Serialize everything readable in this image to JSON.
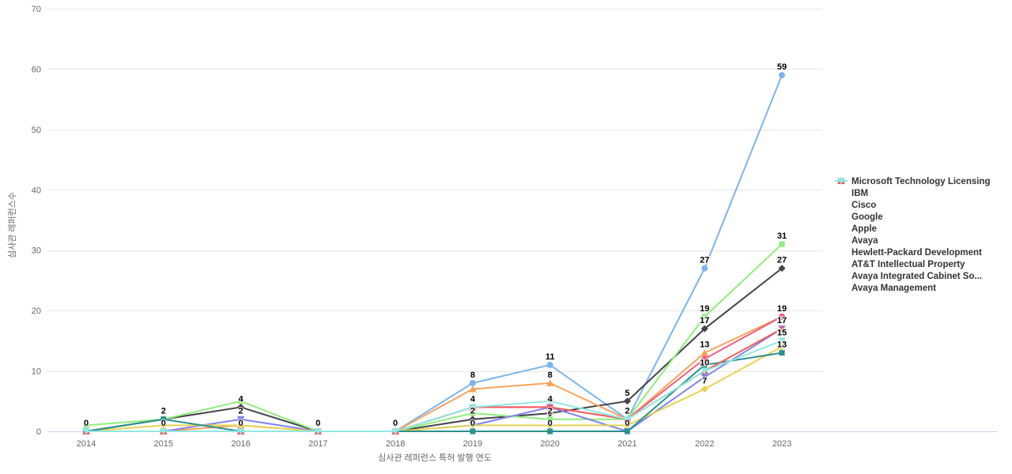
{
  "chart_data": {
    "type": "line",
    "x": [
      2014,
      2015,
      2016,
      2017,
      2018,
      2019,
      2020,
      2021,
      2022,
      2023
    ],
    "xlabel": "심사관 레퍼런스 특허 발행 연도",
    "ylabel": "심사관 레퍼런스수",
    "ylim": [
      0,
      70
    ],
    "yticks": [
      0,
      10,
      20,
      30,
      40,
      50,
      60,
      70
    ],
    "grid": true,
    "legend_position": "right",
    "series": [
      {
        "name": "Microsoft Technology Licensing",
        "color": "#7cb5ec",
        "marker": "circle",
        "values": [
          0,
          0,
          0,
          0,
          0,
          8,
          11,
          2,
          27,
          59
        ]
      },
      {
        "name": "IBM",
        "color": "#434348",
        "marker": "diamond",
        "values": [
          0,
          2,
          4,
          0,
          0,
          2,
          3,
          5,
          17,
          27
        ]
      },
      {
        "name": "Cisco",
        "color": "#90ed7d",
        "marker": "square",
        "values": [
          1,
          2,
          5,
          0,
          0,
          3,
          2,
          2,
          19,
          31
        ]
      },
      {
        "name": "Google",
        "color": "#f7a35c",
        "marker": "triangle",
        "values": [
          0,
          0,
          1,
          0,
          0,
          7,
          8,
          2,
          13,
          19
        ]
      },
      {
        "name": "Apple",
        "color": "#8085e9",
        "marker": "triangle-down",
        "values": [
          0,
          0,
          2,
          0,
          0,
          1,
          4,
          0,
          9,
          17
        ]
      },
      {
        "name": "Avaya",
        "color": "#f15c80",
        "marker": "circle",
        "values": [
          0,
          0,
          0,
          0,
          0,
          4,
          4,
          2,
          12,
          19
        ]
      },
      {
        "name": "Hewlett-Packard Development",
        "color": "#e4d354",
        "marker": "diamond",
        "values": [
          0,
          1,
          1,
          0,
          0,
          1,
          1,
          1,
          7,
          14
        ]
      },
      {
        "name": "AT&T Intellectual Property",
        "color": "#2b908f",
        "marker": "square",
        "values": [
          0,
          2,
          0,
          0,
          0,
          0,
          0,
          0,
          11,
          13
        ]
      },
      {
        "name": "Avaya Integrated Cabinet So...",
        "color": "#f45b5b",
        "marker": "triangle",
        "values": [
          0,
          0,
          0,
          0,
          0,
          4,
          4,
          2,
          10,
          17
        ]
      },
      {
        "name": "Avaya Management",
        "color": "#91e8e1",
        "marker": "triangle-down",
        "values": [
          0,
          0,
          0,
          0,
          0,
          4,
          5,
          2,
          10,
          15
        ]
      }
    ],
    "visible_labels": [
      {
        "year": 2014,
        "value": 0
      },
      {
        "year": 2015,
        "value": 2
      },
      {
        "year": 2015,
        "value": 0
      },
      {
        "year": 2016,
        "value": 4
      },
      {
        "year": 2016,
        "value": 2
      },
      {
        "year": 2016,
        "value": 0
      },
      {
        "year": 2017,
        "value": 0
      },
      {
        "year": 2018,
        "value": 0
      },
      {
        "year": 2019,
        "value": 8
      },
      {
        "year": 2019,
        "value": 4
      },
      {
        "year": 2019,
        "value": 2
      },
      {
        "year": 2019,
        "value": 0
      },
      {
        "year": 2020,
        "value": 11
      },
      {
        "year": 2020,
        "value": 8
      },
      {
        "year": 2020,
        "value": 4
      },
      {
        "year": 2020,
        "value": 2
      },
      {
        "year": 2020,
        "value": 0
      },
      {
        "year": 2021,
        "value": 5
      },
      {
        "year": 2021,
        "value": 2
      },
      {
        "year": 2021,
        "value": 0
      },
      {
        "year": 2022,
        "value": 27
      },
      {
        "year": 2022,
        "value": 19
      },
      {
        "year": 2022,
        "value": 17
      },
      {
        "year": 2022,
        "value": 13
      },
      {
        "year": 2022,
        "value": 10
      },
      {
        "year": 2022,
        "value": 7
      },
      {
        "year": 2023,
        "value": 59
      },
      {
        "year": 2023,
        "value": 31
      },
      {
        "year": 2023,
        "value": 27
      },
      {
        "year": 2023,
        "value": 19
      },
      {
        "year": 2023,
        "value": 17
      },
      {
        "year": 2023,
        "value": 15
      },
      {
        "year": 2023,
        "value": 13
      }
    ],
    "colors": {
      "grid": "#e6e6e6",
      "axis_line": "#ccd6eb",
      "tick_text": "#666666",
      "legend_text": "#333333",
      "label_text": "#000000"
    }
  }
}
